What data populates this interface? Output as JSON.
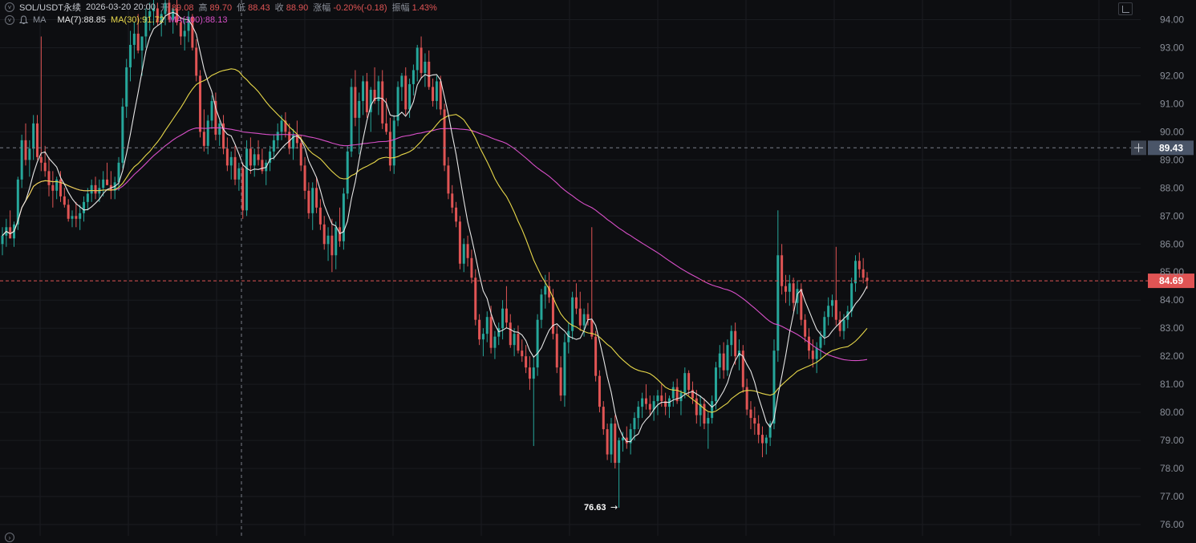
{
  "header": {
    "symbol": "SOL/USDT永续",
    "datetime": "2026-03-20 20:00",
    "open_label": "开",
    "open": "89.08",
    "high_label": "高",
    "high": "89.70",
    "low_label": "低",
    "low": "88.43",
    "close_label": "收",
    "close": "88.90",
    "change_label": "涨幅",
    "change": "-0.20%(-0.18)",
    "amplitude_label": "振幅",
    "amplitude": "1.43%"
  },
  "ma_legend": {
    "label": "MA",
    "ma7": "MA(7):88.85",
    "ma30": "MA(30):91.72",
    "ma100": "MA(100):88.13"
  },
  "colors": {
    "background": "#0d0e11",
    "up": "#26a69a",
    "down": "#e05454",
    "ma7": "#e6e6e6",
    "ma30": "#e8d84a",
    "ma100": "#d84fc8",
    "crosshair_tag": "#4a5568",
    "last_price_tag": "#e05454"
  },
  "icons": [
    "chevron-down-icon",
    "bell-icon",
    "expand-icon",
    "plus-icon",
    "arrow-right-icon"
  ],
  "chart_data": {
    "type": "candlestick",
    "ylim": [
      75.6,
      94.7
    ],
    "y_ticks": [
      "94.00",
      "93.00",
      "92.00",
      "91.00",
      "90.00",
      "89.00",
      "88.00",
      "87.00",
      "86.00",
      "85.00",
      "84.00",
      "83.00",
      "82.00",
      "81.00",
      "80.00",
      "79.00",
      "78.00",
      "77.00",
      "76.00"
    ],
    "crosshair_price": "89.43",
    "last_price": "84.69",
    "low_annotation": "76.63",
    "candles": [
      [
        86.0,
        86.6,
        85.6,
        86.3
      ],
      [
        86.3,
        86.9,
        85.9,
        86.6
      ],
      [
        86.6,
        87.2,
        86.2,
        86.2
      ],
      [
        86.2,
        86.8,
        85.9,
        86.7
      ],
      [
        86.7,
        88.4,
        86.5,
        88.3
      ],
      [
        88.3,
        89.9,
        88.0,
        89.7
      ],
      [
        89.7,
        90.3,
        88.8,
        89.0
      ],
      [
        89.0,
        89.7,
        88.4,
        89.4
      ],
      [
        89.4,
        90.6,
        89.0,
        90.3
      ],
      [
        90.3,
        90.6,
        89.0,
        89.1
      ],
      [
        89.1,
        93.4,
        88.6,
        88.9
      ],
      [
        88.9,
        89.5,
        88.4,
        88.6
      ],
      [
        88.6,
        89.1,
        87.7,
        88.1
      ],
      [
        88.1,
        88.6,
        87.3,
        87.9
      ],
      [
        87.9,
        88.4,
        87.6,
        88.3
      ],
      [
        88.3,
        88.6,
        87.5,
        87.7
      ],
      [
        87.7,
        88.0,
        87.3,
        87.4
      ],
      [
        87.4,
        87.6,
        86.8,
        86.9
      ],
      [
        86.9,
        87.2,
        86.6,
        87.0
      ],
      [
        87.0,
        87.5,
        86.6,
        86.9
      ],
      [
        86.9,
        87.4,
        86.5,
        87.1
      ],
      [
        87.1,
        87.7,
        86.8,
        87.5
      ],
      [
        87.5,
        88.0,
        87.2,
        87.8
      ],
      [
        87.8,
        88.3,
        87.5,
        88.1
      ],
      [
        88.1,
        88.4,
        87.6,
        87.8
      ],
      [
        87.8,
        88.3,
        87.5,
        88.0
      ],
      [
        88.0,
        88.6,
        87.7,
        88.3
      ],
      [
        88.3,
        88.9,
        88.1,
        88.1
      ],
      [
        88.1,
        88.6,
        87.6,
        87.9
      ],
      [
        87.9,
        88.4,
        87.6,
        88.2
      ],
      [
        88.2,
        89.1,
        87.9,
        88.9
      ],
      [
        88.9,
        91.2,
        88.7,
        90.9
      ],
      [
        90.9,
        92.6,
        90.5,
        92.3
      ],
      [
        92.3,
        93.6,
        91.8,
        93.1
      ],
      [
        93.1,
        93.9,
        92.6,
        93.5
      ],
      [
        93.5,
        94.2,
        92.8,
        92.9
      ],
      [
        92.9,
        93.4,
        92.0,
        93.4
      ],
      [
        93.4,
        94.4,
        93.0,
        94.1
      ],
      [
        94.1,
        94.6,
        93.6,
        94.3
      ],
      [
        94.3,
        94.7,
        93.8,
        94.4
      ],
      [
        94.4,
        94.6,
        93.8,
        93.9
      ],
      [
        93.9,
        94.3,
        93.4,
        94.2
      ],
      [
        94.2,
        94.7,
        93.8,
        94.6
      ],
      [
        94.6,
        94.7,
        93.9,
        94.0
      ],
      [
        94.0,
        94.4,
        93.5,
        94.4
      ],
      [
        94.4,
        94.7,
        93.8,
        93.9
      ],
      [
        93.9,
        94.1,
        93.1,
        93.4
      ],
      [
        93.4,
        94.0,
        92.9,
        93.6
      ],
      [
        93.6,
        94.3,
        93.2,
        94.1
      ],
      [
        94.1,
        94.2,
        92.9,
        93.0
      ],
      [
        93.0,
        93.3,
        91.8,
        92.0
      ],
      [
        92.0,
        92.2,
        89.8,
        90.0
      ],
      [
        90.0,
        90.8,
        89.3,
        89.5
      ],
      [
        89.5,
        90.6,
        89.2,
        90.4
      ],
      [
        90.4,
        91.3,
        90.1,
        91.1
      ],
      [
        91.1,
        91.4,
        89.7,
        89.9
      ],
      [
        89.9,
        90.4,
        89.5,
        90.3
      ],
      [
        90.3,
        90.6,
        89.2,
        89.4
      ],
      [
        89.4,
        89.8,
        88.6,
        88.8
      ],
      [
        88.8,
        89.3,
        88.3,
        89.1
      ],
      [
        89.1,
        89.5,
        88.1,
        88.3
      ],
      [
        88.3,
        88.9,
        87.9,
        88.7
      ],
      [
        88.7,
        88.9,
        86.9,
        87.2
      ],
      [
        87.2,
        89.7,
        87.0,
        89.4
      ],
      [
        89.4,
        89.8,
        88.5,
        88.8
      ],
      [
        88.8,
        89.4,
        88.4,
        89.2
      ],
      [
        89.2,
        89.7,
        88.8,
        89.0
      ],
      [
        89.0,
        89.4,
        88.5,
        88.6
      ],
      [
        88.6,
        89.0,
        88.1,
        88.9
      ],
      [
        88.9,
        89.5,
        88.6,
        89.3
      ],
      [
        89.3,
        89.9,
        89.0,
        89.7
      ],
      [
        89.7,
        90.3,
        89.4,
        90.0
      ],
      [
        90.0,
        90.6,
        89.7,
        90.4
      ],
      [
        90.4,
        90.7,
        89.8,
        90.0
      ],
      [
        90.0,
        90.3,
        89.2,
        89.4
      ],
      [
        89.4,
        90.1,
        89.0,
        89.9
      ],
      [
        89.9,
        90.4,
        89.4,
        89.6
      ],
      [
        89.6,
        89.9,
        88.6,
        88.8
      ],
      [
        88.8,
        89.1,
        87.6,
        87.9
      ],
      [
        87.9,
        88.2,
        86.9,
        87.1
      ],
      [
        87.1,
        88.2,
        86.5,
        88.0
      ],
      [
        88.0,
        88.4,
        87.1,
        87.3
      ],
      [
        87.3,
        87.6,
        86.5,
        86.7
      ],
      [
        86.7,
        87.0,
        85.8,
        86.0
      ],
      [
        86.0,
        86.6,
        85.4,
        86.3
      ],
      [
        86.3,
        86.9,
        85.0,
        85.6
      ],
      [
        85.6,
        86.8,
        85.1,
        86.6
      ],
      [
        86.6,
        87.3,
        85.9,
        86.1
      ],
      [
        86.1,
        88.0,
        85.8,
        87.8
      ],
      [
        87.8,
        89.5,
        87.6,
        89.3
      ],
      [
        89.3,
        91.9,
        89.1,
        91.6
      ],
      [
        91.6,
        92.2,
        90.2,
        90.5
      ],
      [
        90.5,
        91.4,
        89.2,
        91.1
      ],
      [
        91.1,
        92.0,
        90.6,
        91.8
      ],
      [
        91.8,
        92.1,
        90.5,
        90.7
      ],
      [
        90.7,
        91.6,
        90.0,
        91.5
      ],
      [
        91.5,
        92.3,
        91.0,
        91.1
      ],
      [
        91.1,
        92.0,
        90.6,
        91.8
      ],
      [
        91.8,
        92.2,
        90.1,
        90.3
      ],
      [
        90.3,
        91.2,
        89.9,
        90.0
      ],
      [
        90.0,
        90.5,
        88.6,
        88.8
      ],
      [
        88.8,
        90.6,
        88.5,
        90.4
      ],
      [
        90.4,
        91.8,
        90.2,
        91.6
      ],
      [
        91.6,
        92.1,
        91.1,
        92.0
      ],
      [
        92.0,
        92.3,
        90.6,
        90.8
      ],
      [
        90.8,
        91.9,
        90.5,
        91.7
      ],
      [
        91.7,
        92.4,
        91.3,
        92.2
      ],
      [
        92.2,
        93.1,
        91.8,
        93.0
      ],
      [
        93.0,
        93.4,
        91.9,
        92.1
      ],
      [
        92.1,
        92.8,
        91.6,
        92.5
      ],
      [
        92.5,
        92.9,
        91.5,
        91.6
      ],
      [
        91.6,
        91.9,
        90.9,
        91.1
      ],
      [
        91.1,
        92.0,
        90.8,
        91.8
      ],
      [
        91.8,
        92.0,
        90.6,
        90.8
      ],
      [
        90.8,
        91.0,
        88.6,
        88.8
      ],
      [
        88.8,
        89.1,
        87.6,
        87.8
      ],
      [
        87.8,
        88.1,
        87.1,
        87.3
      ],
      [
        87.3,
        87.5,
        86.6,
        86.8
      ],
      [
        86.8,
        87.0,
        85.1,
        85.3
      ],
      [
        85.3,
        86.2,
        85.0,
        86.0
      ],
      [
        86.0,
        86.3,
        85.2,
        85.5
      ],
      [
        85.5,
        85.8,
        84.6,
        84.8
      ],
      [
        84.8,
        85.1,
        83.1,
        83.3
      ],
      [
        83.3,
        83.5,
        82.4,
        82.6
      ],
      [
        82.6,
        83.0,
        82.0,
        82.8
      ],
      [
        82.8,
        83.6,
        82.5,
        83.4
      ],
      [
        83.4,
        83.8,
        82.1,
        82.3
      ],
      [
        82.3,
        82.9,
        81.9,
        82.7
      ],
      [
        82.7,
        83.2,
        82.4,
        83.0
      ],
      [
        83.0,
        84.0,
        82.6,
        83.7
      ],
      [
        83.7,
        84.5,
        83.0,
        83.2
      ],
      [
        83.2,
        83.5,
        82.3,
        82.4
      ],
      [
        82.4,
        83.0,
        82.0,
        82.8
      ],
      [
        82.8,
        83.1,
        82.1,
        82.2
      ],
      [
        82.2,
        82.6,
        81.8,
        82.0
      ],
      [
        82.0,
        82.4,
        81.4,
        81.6
      ],
      [
        81.6,
        82.0,
        80.8,
        81.2
      ],
      [
        81.2,
        82.0,
        78.8,
        81.6
      ],
      [
        81.6,
        83.5,
        81.3,
        83.3
      ],
      [
        83.3,
        84.4,
        83.0,
        84.2
      ],
      [
        84.2,
        84.9,
        83.7,
        84.5
      ],
      [
        84.5,
        85.0,
        83.9,
        84.1
      ],
      [
        84.1,
        84.4,
        82.6,
        82.8
      ],
      [
        82.8,
        83.1,
        81.4,
        81.6
      ],
      [
        81.6,
        82.0,
        80.4,
        80.6
      ],
      [
        80.6,
        82.8,
        80.2,
        82.5
      ],
      [
        82.5,
        83.2,
        82.1,
        82.9
      ],
      [
        82.9,
        84.3,
        82.6,
        84.1
      ],
      [
        84.1,
        84.6,
        83.5,
        83.7
      ],
      [
        83.7,
        84.3,
        82.9,
        83.1
      ],
      [
        83.1,
        83.7,
        82.7,
        83.5
      ],
      [
        83.5,
        83.9,
        83.1,
        83.3
      ],
      [
        83.3,
        86.6,
        82.6,
        82.7
      ],
      [
        82.7,
        82.9,
        81.1,
        81.3
      ],
      [
        81.3,
        81.5,
        80.0,
        80.2
      ],
      [
        80.2,
        80.4,
        79.2,
        79.4
      ],
      [
        79.4,
        79.6,
        78.3,
        78.5
      ],
      [
        78.5,
        79.8,
        78.2,
        79.6
      ],
      [
        79.6,
        79.9,
        78.0,
        78.2
      ],
      [
        78.2,
        79.1,
        76.6,
        79.0
      ],
      [
        79.0,
        79.3,
        78.6,
        79.1
      ],
      [
        79.1,
        79.5,
        78.7,
        78.9
      ],
      [
        78.9,
        79.6,
        78.5,
        79.4
      ],
      [
        79.4,
        80.0,
        79.0,
        79.8
      ],
      [
        79.8,
        80.4,
        79.4,
        80.2
      ],
      [
        80.2,
        80.7,
        79.8,
        80.5
      ],
      [
        80.5,
        81.0,
        80.1,
        80.3
      ],
      [
        80.3,
        80.6,
        79.9,
        80.1
      ],
      [
        80.1,
        80.6,
        79.7,
        80.4
      ],
      [
        80.4,
        80.8,
        79.9,
        80.6
      ],
      [
        80.6,
        81.0,
        80.2,
        80.4
      ],
      [
        80.4,
        80.7,
        79.9,
        80.2
      ],
      [
        80.2,
        80.6,
        79.8,
        80.5
      ],
      [
        80.5,
        81.1,
        80.2,
        80.9
      ],
      [
        80.9,
        81.2,
        80.3,
        80.4
      ],
      [
        80.4,
        80.8,
        79.9,
        80.7
      ],
      [
        80.7,
        81.6,
        80.5,
        81.4
      ],
      [
        81.4,
        81.5,
        80.6,
        80.8
      ],
      [
        80.8,
        81.1,
        80.3,
        80.5
      ],
      [
        80.5,
        80.8,
        79.6,
        79.9
      ],
      [
        79.9,
        80.6,
        79.5,
        80.3
      ],
      [
        80.3,
        80.5,
        79.4,
        79.6
      ],
      [
        79.6,
        80.0,
        78.7,
        79.8
      ],
      [
        79.8,
        80.6,
        79.6,
        80.4
      ],
      [
        80.4,
        81.8,
        80.1,
        81.6
      ],
      [
        81.6,
        82.4,
        81.2,
        82.1
      ],
      [
        82.1,
        82.5,
        81.2,
        81.5
      ],
      [
        81.5,
        82.6,
        81.3,
        82.4
      ],
      [
        82.4,
        83.1,
        82.0,
        82.9
      ],
      [
        82.9,
        83.2,
        81.7,
        82.0
      ],
      [
        82.0,
        82.6,
        81.5,
        82.2
      ],
      [
        82.2,
        82.4,
        80.7,
        80.9
      ],
      [
        80.9,
        81.2,
        79.9,
        80.1
      ],
      [
        80.1,
        80.4,
        79.4,
        79.8
      ],
      [
        79.8,
        80.2,
        79.2,
        79.6
      ],
      [
        79.6,
        79.9,
        78.9,
        79.2
      ],
      [
        79.2,
        79.5,
        78.4,
        78.9
      ],
      [
        78.9,
        79.2,
        78.5,
        79.1
      ],
      [
        79.1,
        79.7,
        78.8,
        79.6
      ],
      [
        79.6,
        82.6,
        79.4,
        82.2
      ],
      [
        82.2,
        87.2,
        81.8,
        85.6
      ],
      [
        85.6,
        86.0,
        84.2,
        84.5
      ],
      [
        84.5,
        84.9,
        83.9,
        84.3
      ],
      [
        84.3,
        84.9,
        83.8,
        84.6
      ],
      [
        84.6,
        84.8,
        83.6,
        83.9
      ],
      [
        83.9,
        84.7,
        83.5,
        84.4
      ],
      [
        84.4,
        84.6,
        83.1,
        83.3
      ],
      [
        83.3,
        83.5,
        82.5,
        82.7
      ],
      [
        82.7,
        83.0,
        81.9,
        82.2
      ],
      [
        82.2,
        82.6,
        81.6,
        81.9
      ],
      [
        81.9,
        82.5,
        81.4,
        82.3
      ],
      [
        82.3,
        82.9,
        81.9,
        82.7
      ],
      [
        82.7,
        83.6,
        82.4,
        83.4
      ],
      [
        83.4,
        84.1,
        83.1,
        83.8
      ],
      [
        83.8,
        84.2,
        83.4,
        84.0
      ],
      [
        84.0,
        85.9,
        83.1,
        83.3
      ],
      [
        83.3,
        83.6,
        82.7,
        82.9
      ],
      [
        82.9,
        83.5,
        82.6,
        83.3
      ],
      [
        83.3,
        83.8,
        83.0,
        83.6
      ],
      [
        83.6,
        84.8,
        83.4,
        84.6
      ],
      [
        84.6,
        85.6,
        84.3,
        85.4
      ],
      [
        85.4,
        85.7,
        84.8,
        85.1
      ],
      [
        85.1,
        85.5,
        84.6,
        84.8
      ],
      [
        84.8,
        85.0,
        84.4,
        84.69
      ]
    ]
  }
}
